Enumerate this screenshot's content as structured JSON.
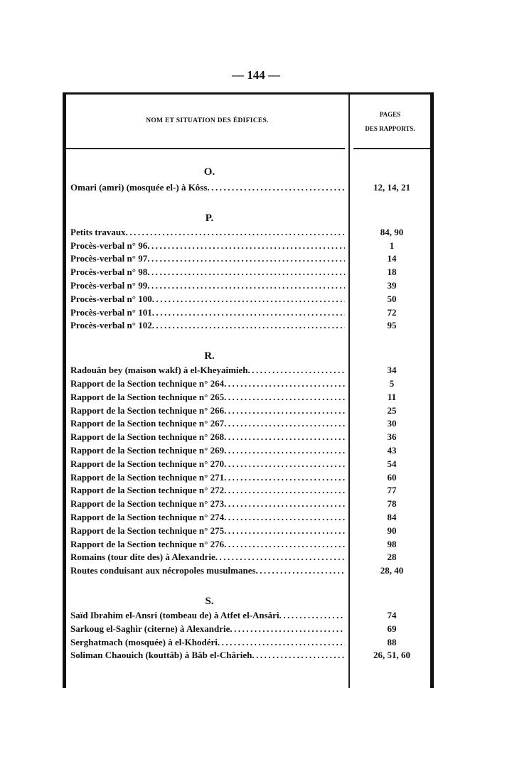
{
  "page_number": "— 144 —",
  "header": {
    "col1": "NOM ET SITUATION DES ÉDIFICES.",
    "col2_line1": "PAGES",
    "col2_line2": "DES RAPPORTS."
  },
  "sections": [
    {
      "letter": "O.",
      "entries": [
        {
          "name": "Omari (amri) (mosquée el-) à Kôss",
          "pages": "12, 14, 21"
        }
      ]
    },
    {
      "letter": "P.",
      "entries": [
        {
          "name": "Petits travaux",
          "pages": "84, 90"
        },
        {
          "name": "Procès-verbal n° 96",
          "pages": "1"
        },
        {
          "name": "Procès-verbal n° 97",
          "pages": "14"
        },
        {
          "name": "Procès-verbal n° 98",
          "pages": "18"
        },
        {
          "name": "Procès-verbal n° 99",
          "pages": "39"
        },
        {
          "name": "Procès-verbal n° 100",
          "pages": "50"
        },
        {
          "name": "Procès-verbal n° 101",
          "pages": "72"
        },
        {
          "name": "Procès-verbal n° 102",
          "pages": "95"
        }
      ]
    },
    {
      "letter": "R.",
      "entries": [
        {
          "name": "Radouân bey (maison wakf) à el-Kheyaimieh",
          "pages": "34"
        },
        {
          "name": "Rapport de la Section technique n° 264",
          "pages": "5"
        },
        {
          "name": "Rapport de la Section technique n° 265",
          "pages": "11"
        },
        {
          "name": "Rapport de la Section technique n° 266",
          "pages": "25"
        },
        {
          "name": "Rapport de la Section technique n° 267",
          "pages": "30"
        },
        {
          "name": "Rapport de la Section technique n° 268",
          "pages": "36"
        },
        {
          "name": "Rapport de la Section technique n° 269",
          "pages": "43"
        },
        {
          "name": "Rapport de la Section technique n° 270",
          "pages": "54"
        },
        {
          "name": "Rapport de la Section technique n° 271",
          "pages": "60"
        },
        {
          "name": "Rapport de la Section technique n° 272",
          "pages": "77"
        },
        {
          "name": "Rapport de la Section technique n° 273",
          "pages": "78"
        },
        {
          "name": "Rapport de la Section technique n° 274",
          "pages": "84"
        },
        {
          "name": "Rapport de la Section technique n° 275",
          "pages": "90"
        },
        {
          "name": "Rapport de la Section technique n° 276",
          "pages": "98"
        },
        {
          "name": "Romains (tour dite des) à Alexandrie",
          "pages": "28"
        },
        {
          "name": "Routes conduisant aux nécropoles musulmanes",
          "pages": "28, 40"
        }
      ]
    },
    {
      "letter": "S.",
      "entries": [
        {
          "name": "Saïd Ibrahim el-Ansri (tombeau de) à Atfet el-Ansâri",
          "pages": "74"
        },
        {
          "name": "Sarkoug el-Saghir (citerne) à Alexandrie",
          "pages": "69"
        },
        {
          "name": "Serghatmach (mosquée) à el-Khodéri",
          "pages": "88"
        },
        {
          "name": "Soliman Chaouich (kouttâb) à Bâb el-Chârieh",
          "pages": "26, 51, 60"
        }
      ]
    }
  ]
}
